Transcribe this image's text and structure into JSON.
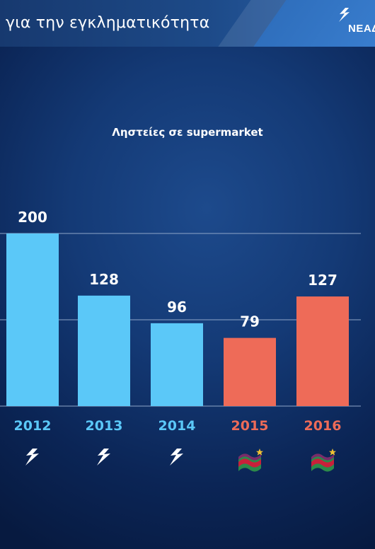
{
  "header": {
    "title": "για την εγκληματικότητα",
    "logo_text": "ΝΕΑΔ",
    "logo_icon": "lightning-torch-icon"
  },
  "colors": {
    "blue_bar": "#5bc8f8",
    "red_bar": "#ee6b58",
    "gridline": "#8fa6c8"
  },
  "chart_data": {
    "type": "bar",
    "title": "Ληστείες σε supermarket",
    "xlabel": "",
    "ylabel": "",
    "categories": [
      "2012",
      "2013",
      "2014",
      "2015",
      "2016"
    ],
    "values": [
      200,
      128,
      96,
      79,
      127
    ],
    "bar_colors": [
      "#5bc8f8",
      "#5bc8f8",
      "#5bc8f8",
      "#ee6b58",
      "#ee6b58"
    ],
    "ylim": [
      0,
      200
    ],
    "grid": true,
    "legend": "none",
    "category_icons": [
      "nd-party-icon",
      "nd-party-icon",
      "nd-party-icon",
      "syriza-flag-icon",
      "syriza-flag-icon"
    ]
  }
}
